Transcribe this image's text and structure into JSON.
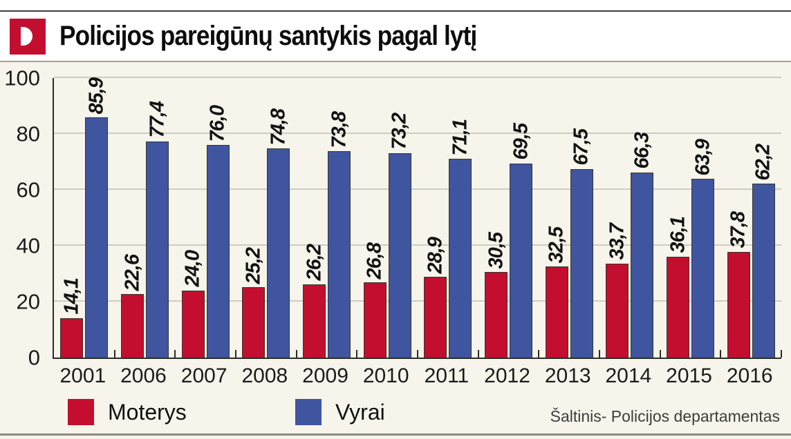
{
  "header": {
    "title": "Policijos pareigūnų santykis pagal lytį",
    "logo": "delfi-D-mark"
  },
  "chart_data": {
    "type": "bar",
    "title": "Policijos pareigūnų santykis pagal lytį",
    "categories": [
      "2001",
      "2006",
      "2007",
      "2008",
      "2009",
      "2010",
      "2011",
      "2012",
      "2013",
      "2014",
      "2015",
      "2016"
    ],
    "series": [
      {
        "name": "Moterys",
        "color": "#c40e2f",
        "values": [
          14.1,
          22.6,
          24.0,
          25.2,
          26.2,
          26.8,
          28.9,
          30.5,
          32.5,
          33.7,
          36.1,
          37.8
        ],
        "labels": [
          "14,1",
          "22,6",
          "24,0",
          "25,2",
          "26,2",
          "26,8",
          "28,9",
          "30,5",
          "32,5",
          "33,7",
          "36,1",
          "37,8"
        ]
      },
      {
        "name": "Vyrai",
        "color": "#4055a0",
        "values": [
          85.9,
          77.4,
          76.0,
          74.8,
          73.8,
          73.2,
          71.1,
          69.5,
          67.5,
          66.3,
          63.9,
          62.2
        ],
        "labels": [
          "85,9",
          "77,4",
          "76,0",
          "74,8",
          "73,8",
          "73,2",
          "71,1",
          "69,5",
          "67,5",
          "66,3",
          "63,9",
          "62,2"
        ]
      }
    ],
    "ylim": [
      0,
      100
    ],
    "yticks": [
      0,
      20,
      40,
      60,
      80,
      100
    ],
    "grid": true,
    "legend_position": "bottom",
    "value_label_rotation": "vertical"
  },
  "footer": {
    "source": "Šaltinis- Policijos departamentas"
  }
}
